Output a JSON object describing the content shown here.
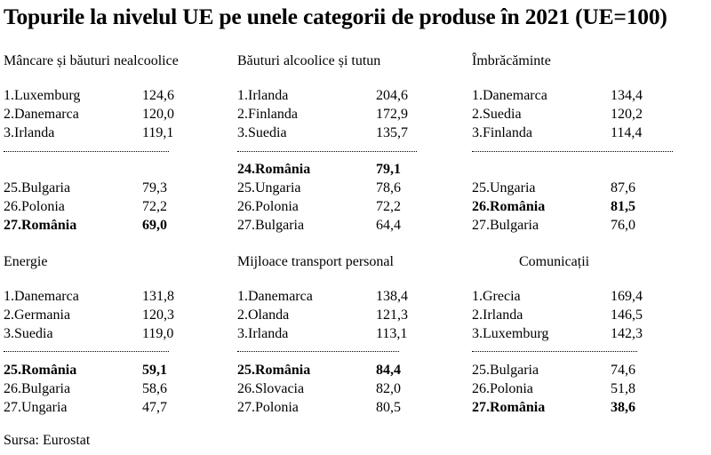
{
  "title": "Topurile la nivelul UE pe unele categorii de produse în 2021 (UE=100)",
  "source": "Sursa: Eurostat",
  "sections": [
    {
      "title": "Mâncare și băuturi nealcoolice",
      "top": [
        {
          "name": "1.Luxemburg",
          "value": "124,6"
        },
        {
          "name": "2.Danemarca",
          "value": "120,0"
        },
        {
          "name": "3.Irlanda",
          "value": "119,1"
        }
      ],
      "bottom": [
        {
          "name": "25.Bulgaria",
          "value": "79,3"
        },
        {
          "name": "26.Polonia",
          "value": "72,2"
        },
        {
          "name": "27.România",
          "value": "69,0"
        }
      ]
    },
    {
      "title": "Băuturi alcoolice și tutun",
      "top": [
        {
          "name": "1.Irlanda",
          "value": "204,6"
        },
        {
          "name": "2.Finlanda",
          "value": "172,9"
        },
        {
          "name": "3.Suedia",
          "value": "135,7"
        }
      ],
      "bottom": [
        {
          "name": "24.România",
          "value": "79,1"
        },
        {
          "name": "25.Ungaria",
          "value": "78,6"
        },
        {
          "name": "26.Polonia",
          "value": "72,2"
        },
        {
          "name": "27.Bulgaria",
          "value": "64,4"
        }
      ]
    },
    {
      "title": "Îmbrăcăminte",
      "top": [
        {
          "name": "1.Danemarca",
          "value": "134,4"
        },
        {
          "name": "2.Suedia",
          "value": "120,2"
        },
        {
          "name": "3.Finlanda",
          "value": "114,4"
        }
      ],
      "bottom": [
        {
          "name": "25.Ungaria",
          "value": "87,6"
        },
        {
          "name": "26.România",
          "value": "81,5"
        },
        {
          "name": "27.Bulgaria",
          "value": "76,0"
        }
      ]
    },
    {
      "title": "Energie",
      "top": [
        {
          "name": "1.Danemarca",
          "value": "131,8"
        },
        {
          "name": "2.Germania",
          "value": "120,3"
        },
        {
          "name": "3.Suedia",
          "value": "119,0"
        }
      ],
      "bottom": [
        {
          "name": "25.România",
          "value": "59,1"
        },
        {
          "name": "26.Bulgaria",
          "value": "58,6"
        },
        {
          "name": "27.Ungaria",
          "value": "47,7"
        }
      ]
    },
    {
      "title": "Mijloace transport personal",
      "top": [
        {
          "name": "1.Danemarca",
          "value": "138,4"
        },
        {
          "name": "2.Olanda",
          "value": "121,3"
        },
        {
          "name": "3.Irlanda",
          "value": "113,1"
        }
      ],
      "bottom": [
        {
          "name": "25.România",
          "value": "84,4"
        },
        {
          "name": "26.Slovacia",
          "value": "82,0"
        },
        {
          "name": "27.Polonia",
          "value": "80,5"
        }
      ]
    },
    {
      "title": "Comunicații",
      "top": [
        {
          "name": "1.Grecia",
          "value": "169,4"
        },
        {
          "name": "2.Irlanda",
          "value": "146,5"
        },
        {
          "name": "3.Luxemburg",
          "value": "142,3"
        }
      ],
      "bottom": [
        {
          "name": "25.Bulgaria",
          "value": "74,6"
        },
        {
          "name": "26.Polonia",
          "value": "51,8"
        },
        {
          "name": "27.România",
          "value": "38,6"
        }
      ]
    }
  ]
}
